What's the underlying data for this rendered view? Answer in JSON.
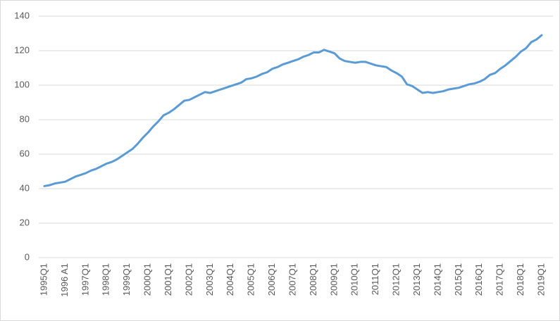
{
  "chart_data": {
    "type": "line",
    "categories": [
      "1995Q1",
      null,
      null,
      null,
      "1996 A1",
      null,
      null,
      null,
      "1997Q1",
      null,
      null,
      null,
      "1998Q1",
      null,
      null,
      null,
      "1999Q1",
      null,
      null,
      null,
      "2000Q1",
      null,
      null,
      null,
      "2001Q1",
      null,
      null,
      null,
      "2002Q1",
      null,
      null,
      null,
      "2003Q1",
      null,
      null,
      null,
      "2004Q1",
      null,
      null,
      null,
      "2005Q1",
      null,
      null,
      null,
      "2006Q1",
      null,
      null,
      null,
      "2007Q1",
      null,
      null,
      null,
      "2008Q1",
      null,
      null,
      null,
      "2009Q1",
      null,
      null,
      null,
      "2010Q1",
      null,
      null,
      null,
      "2011Q1",
      null,
      null,
      null,
      "2012Q1",
      null,
      null,
      null,
      "2013Q1",
      null,
      null,
      null,
      "2014Q1",
      null,
      null,
      null,
      "2015Q1",
      null,
      null,
      null,
      "2016Q1",
      null,
      null,
      null,
      "2017Q1",
      null,
      null,
      null,
      "2018Q1",
      null,
      null,
      null,
      "2019Q1"
    ],
    "values": [
      41.5,
      42,
      43,
      43.5,
      44,
      45.5,
      47,
      48,
      49,
      50.5,
      51.5,
      53,
      54.5,
      55.5,
      57,
      59,
      61,
      63,
      66,
      69.5,
      72.5,
      76,
      79,
      82.5,
      84,
      86,
      88.5,
      91,
      91.5,
      93,
      94.5,
      96,
      95.5,
      96.5,
      97.5,
      98.5,
      99.5,
      100.5,
      101.5,
      103.5,
      104,
      105,
      106.5,
      107.5,
      109.5,
      110.5,
      112,
      113,
      114,
      115,
      116.5,
      117.5,
      119,
      119,
      120.5,
      119.5,
      118.5,
      115.5,
      114,
      113.5,
      113,
      113.5,
      113.5,
      112.5,
      111.5,
      111,
      110.5,
      108.5,
      107,
      105,
      100.5,
      99.5,
      97.5,
      95.5,
      96,
      95.5,
      96,
      96.5,
      97.5,
      98,
      98.5,
      99.5,
      100.5,
      101,
      102,
      103.5,
      106,
      107,
      109.5,
      111.5,
      114,
      116.5,
      119.5,
      121.5,
      125,
      126.5,
      129
    ],
    "color": "#5b9bd5",
    "ylim": [
      0,
      140
    ],
    "yticks": [
      0,
      20,
      40,
      60,
      80,
      100,
      120,
      140
    ],
    "grid": true
  }
}
